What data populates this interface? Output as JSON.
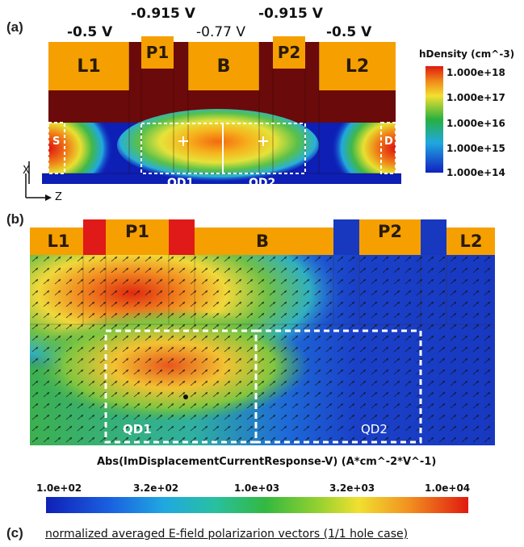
{
  "panel_a": {
    "label": "(a)",
    "voltages": {
      "left_lead": "-0.5 V",
      "plunger_1": "-0.915 V",
      "barrier": "-0.77 V",
      "plunger_2": "-0.915 V",
      "right_lead": "-0.5 V"
    },
    "gates": [
      "L1",
      "P1",
      "B",
      "P2",
      "L2"
    ],
    "source_label": "S",
    "drain_label": "D",
    "qd1_label": "QD1",
    "qd2_label": "QD2",
    "axis_x": "X",
    "axis_z": "Z",
    "legend": {
      "title": "hDensity (cm^-3)",
      "ticks": [
        "1.000e+18",
        "1.000e+17",
        "1.000e+16",
        "1.000e+15",
        "1.000e+14"
      ],
      "colors": [
        "#dd1a10",
        "#f0c020",
        "#20b040",
        "#20a0e0",
        "#1020c0"
      ]
    }
  },
  "panel_b": {
    "label": "(b)",
    "gates": [
      "L1",
      "P1",
      "B",
      "P2",
      "L2"
    ],
    "qd1_label": "QD1",
    "qd2_label": "QD2",
    "colorbar": {
      "title": "Abs(ImDisplacementCurrentResponse-V) (A*cm^-2*V^-1)",
      "ticks": [
        "1.0e+02",
        "3.2e+02",
        "1.0e+03",
        "3.2e+03",
        "1.0e+04"
      ]
    }
  },
  "panel_c": {
    "label": "(c)",
    "caption": "normalized averaged E-field polarizarion vectors (1/1 hole case)"
  },
  "colors": {
    "gate_orange": "#f5a000",
    "oxide_maroon": "#6b0a0a",
    "substrate_blue": "#0d1fb5"
  }
}
